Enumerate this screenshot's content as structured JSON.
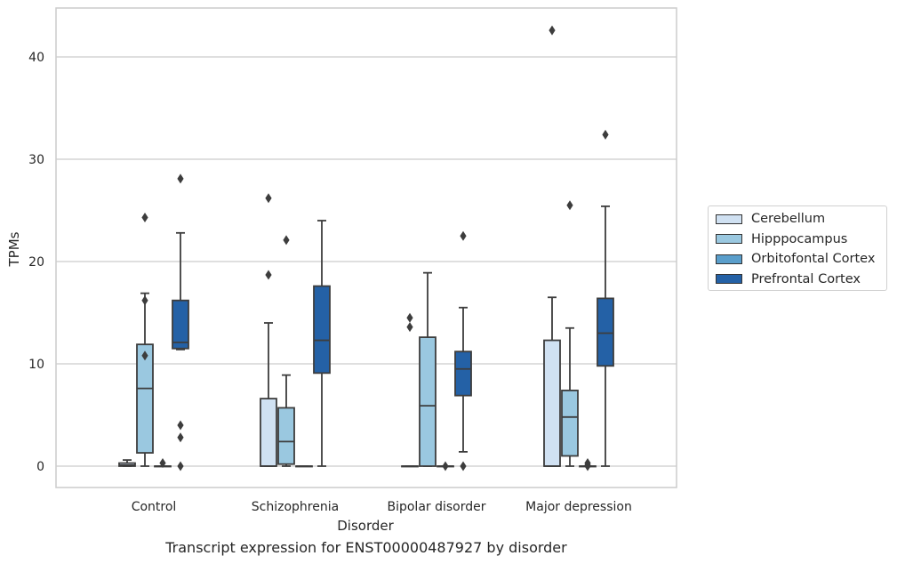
{
  "chart_data": {
    "type": "box",
    "title": "Transcript expression for ENST00000487927 by disorder",
    "xlabel": "Disorder",
    "ylabel": "TPMs",
    "ylim": [
      -2,
      45
    ],
    "yticks": [
      0,
      10,
      20,
      30,
      40
    ],
    "grid": true,
    "legend_position": "right",
    "categories": [
      "Control",
      "Schizophrenia",
      "Bipolar disorder",
      "Major depression"
    ],
    "series": [
      {
        "name": "Cerebellum",
        "color": "#d0e1f2",
        "boxes": [
          {
            "whislo": 0,
            "q1": 0,
            "med": 0.1,
            "q3": 0.3,
            "whishi": 0.6,
            "fliers": []
          },
          {
            "whislo": 0,
            "q1": 0,
            "med": 0,
            "q3": 6.6,
            "whishi": 14,
            "fliers": [
              18.7,
              26.2
            ]
          },
          {
            "whislo": 0,
            "q1": 0,
            "med": 0,
            "q3": 0,
            "whishi": 0,
            "fliers": [
              13.6,
              14.5
            ]
          },
          {
            "whislo": 0,
            "q1": 0,
            "med": 0,
            "q3": 12.3,
            "whishi": 16.5,
            "fliers": [
              42.6
            ]
          }
        ]
      },
      {
        "name": "Hipppocampus",
        "color": "#9ac8e0",
        "boxes": [
          {
            "whislo": 0,
            "q1": 1.3,
            "med": 7.6,
            "q3": 11.9,
            "whishi": 16.9,
            "fliers": [
              10.8,
              16.2,
              24.3
            ]
          },
          {
            "whislo": 0,
            "q1": 0.2,
            "med": 2.4,
            "q3": 5.7,
            "whishi": 8.9,
            "fliers": [
              22.1
            ]
          },
          {
            "whislo": 0,
            "q1": 0,
            "med": 5.9,
            "q3": 12.6,
            "whishi": 18.9,
            "fliers": []
          },
          {
            "whislo": 0,
            "q1": 1,
            "med": 4.8,
            "q3": 7.4,
            "whishi": 13.5,
            "fliers": [
              25.5
            ]
          }
        ]
      },
      {
        "name": "Orbitofontal Cortex",
        "color": "#5a9ecb",
        "boxes": [
          {
            "whislo": 0,
            "q1": 0,
            "med": 0,
            "q3": 0,
            "whishi": 0,
            "fliers": [
              0.3
            ]
          },
          {
            "whislo": 0,
            "q1": 0,
            "med": 0,
            "q3": 0,
            "whishi": 0,
            "fliers": []
          },
          {
            "whislo": 0,
            "q1": 0,
            "med": 0,
            "q3": 0,
            "whishi": 0,
            "fliers": [
              0
            ]
          },
          {
            "whislo": 0,
            "q1": 0,
            "med": 0,
            "q3": 0,
            "whishi": 0,
            "fliers": [
              0,
              0.1,
              0.3
            ]
          }
        ]
      },
      {
        "name": "Prefrontal Cortex",
        "color": "#2461a6",
        "boxes": [
          {
            "whislo": 11.4,
            "q1": 11.5,
            "med": 12.1,
            "q3": 16.2,
            "whishi": 22.8,
            "fliers": [
              0,
              2.8,
              4,
              28.1
            ]
          },
          {
            "whislo": 0,
            "q1": 9.1,
            "med": 12.3,
            "q3": 17.6,
            "whishi": 24,
            "fliers": []
          },
          {
            "whislo": 1.4,
            "q1": 6.9,
            "med": 9.5,
            "q3": 11.2,
            "whishi": 15.5,
            "fliers": [
              0,
              22.5
            ]
          },
          {
            "whislo": 0,
            "q1": 9.8,
            "med": 13,
            "q3": 16.4,
            "whishi": 25.4,
            "fliers": [
              32.4
            ]
          }
        ]
      }
    ]
  }
}
